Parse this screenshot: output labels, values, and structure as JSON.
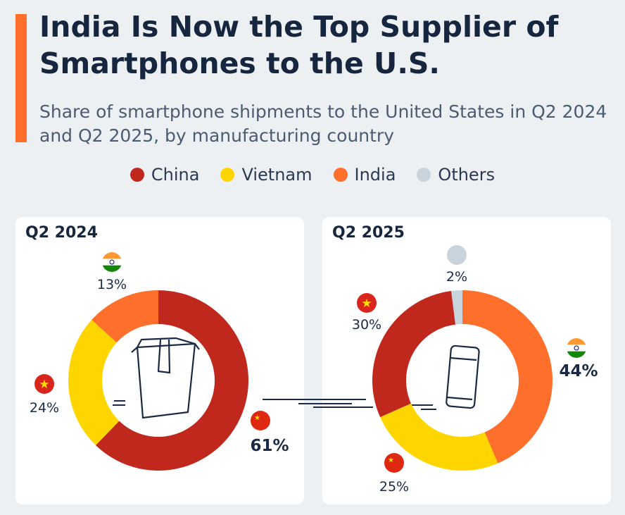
{
  "title": "India Is Now the Top Supplier of Smartphones to the U.S.",
  "subtitle": "Share of smartphone shipments to the United States in Q2 2024 and Q2 2025, by manufacturing country",
  "legend": [
    {
      "label": "China",
      "color": "#c0281e"
    },
    {
      "label": "Vietnam",
      "color": "#ffd500"
    },
    {
      "label": "India",
      "color": "#ff6f2c"
    },
    {
      "label": "Others",
      "color": "#c9d3dc"
    }
  ],
  "chart_data": [
    {
      "type": "pie",
      "donut": true,
      "title": "Q2 2024",
      "center_icon": "package-icon",
      "slices": [
        {
          "flag": "china",
          "value": 61,
          "label": "61%",
          "color": "#c0281e",
          "bold": true
        },
        {
          "flag": "vietnam",
          "value": 24,
          "label": "24%",
          "color": "#ffd500"
        },
        {
          "flag": "india",
          "value": 13,
          "label": "13%",
          "color": "#ff6f2c"
        }
      ]
    },
    {
      "type": "pie",
      "donut": true,
      "title": "Q2 2025",
      "center_icon": "smartphone-icon",
      "slices": [
        {
          "flag": "india",
          "value": 44,
          "label": "44%",
          "color": "#ff6f2c",
          "bold": true
        },
        {
          "flag": "china",
          "value": 25,
          "label": "25%",
          "color": "#ffd500"
        },
        {
          "flag": "vietnam",
          "value": 30,
          "label": "30%",
          "color": "#c0281e"
        },
        {
          "flag": "others",
          "value": 2,
          "label": "2%",
          "color": "#c9d3dc"
        }
      ]
    }
  ]
}
